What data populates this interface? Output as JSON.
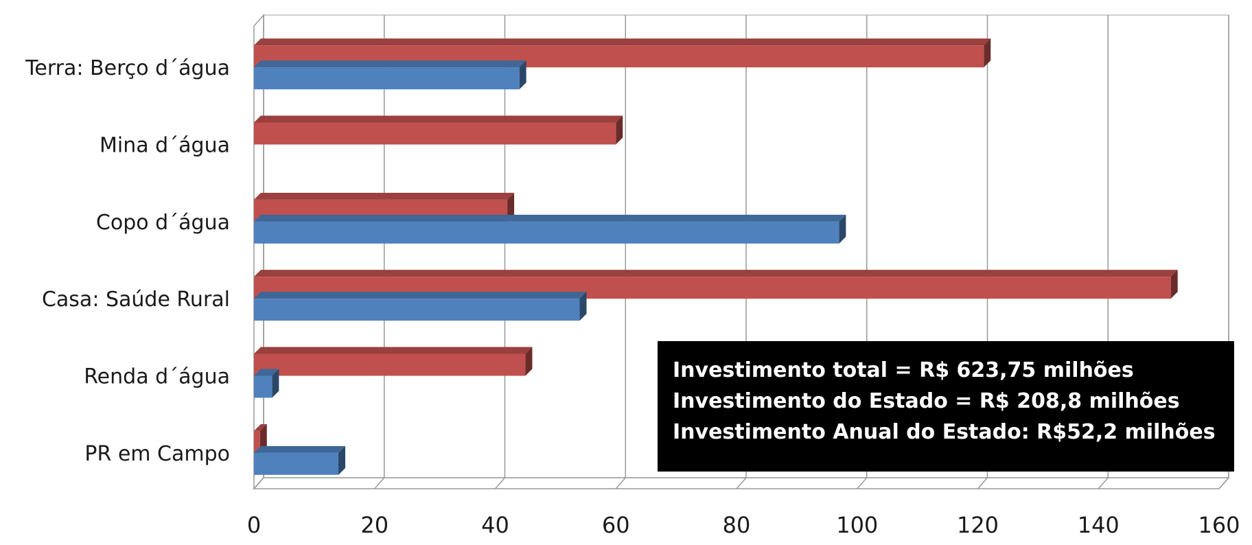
{
  "chart_data": {
    "type": "bar",
    "orientation": "horizontal",
    "style": "3d",
    "categories": [
      "Terra: Berço d´água",
      "Mina d´água",
      "Copo d´água",
      "Casa: Saúde Rural",
      "Renda d´água",
      "PR em Campo"
    ],
    "series": [
      {
        "values": [
          121,
          60,
          42,
          152,
          45,
          1
        ],
        "color": "#c0504d"
      },
      {
        "values": [
          44,
          0,
          97,
          54,
          3,
          14
        ],
        "color": "#4f81bd"
      }
    ],
    "xlim": [
      0,
      160
    ],
    "xticks": [
      "0",
      "20",
      "40",
      "60",
      "80",
      "100",
      "120",
      "140",
      "160"
    ],
    "grid": true,
    "legend": "none",
    "annotation": {
      "lines": [
        "Investimento total = R$ 623,75 milhões",
        "Investimento do Estado = R$ 208,8 milhões",
        "Investimento Anual do Estado: R$52,2 milhões"
      ]
    }
  }
}
